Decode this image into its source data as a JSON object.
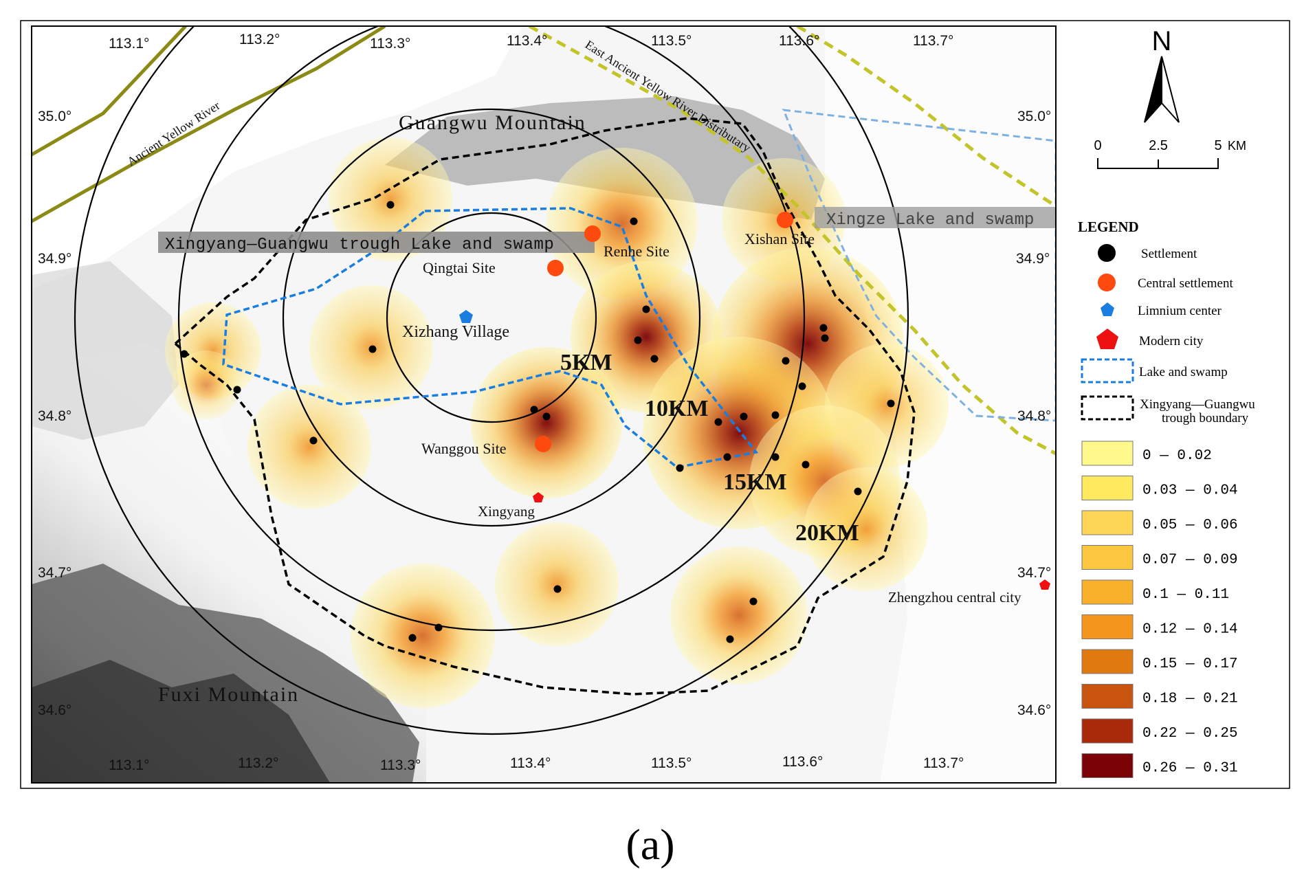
{
  "figure_label": "(a)",
  "grid": {
    "lon_top": [
      "113.1°",
      "113.2°",
      "113.3°",
      "113.4°",
      "113.5°",
      "113.6°",
      "113.7°"
    ],
    "lon_bottom": [
      "113.1°",
      "113.2°",
      "113.3°",
      "113.4°",
      "113.5°",
      "113.6°",
      "113.7°"
    ],
    "lat_left": [
      "35.0°",
      "34.9°",
      "34.8°",
      "34.7°",
      "34.6°"
    ],
    "lat_right": [
      "35.0°",
      "34.9°",
      "34.8°",
      "34.7°",
      "34.6°"
    ]
  },
  "map_labels": {
    "guangwu_mountain": "Guangwu Mountain",
    "fuxi_mountain": "Fuxi Mountain",
    "ancient_yellow_river": "Ancient Yellow River",
    "east_ancient_yellow_river": "East Ancient Yellow River Distributary",
    "xingyang_trough_lake": "Xingyang—Guangwu trough Lake and swamp",
    "xingze_lake": "Xingze Lake and swamp",
    "qingtai_site": "Qingtai  Site",
    "renhe_site": "Renhe Site",
    "xishan_site": "Xishan  Site",
    "wanggou_site": "Wanggou Site",
    "xizhang_village": "Xizhang Village",
    "xingyang": "Xingyang",
    "zhengzhou": "Zhengzhou central city"
  },
  "rings": {
    "r5": "5KM",
    "r10": "10KM",
    "r15": "15KM",
    "r20": "20KM"
  },
  "north_arrow": {
    "letter": "N"
  },
  "scale_bar": {
    "ticks": [
      "0",
      "2.5",
      "5"
    ],
    "unit": "KM"
  },
  "legend": {
    "title": "LEGEND",
    "symbols": [
      {
        "label": "Settlement",
        "icon": "black-dot-icon",
        "color": "#000000"
      },
      {
        "label": "Central settlement",
        "icon": "orange-dot-icon",
        "color": "#ff4a0f"
      },
      {
        "label": "Limnium center",
        "icon": "blue-pentagon-icon",
        "color": "#1a7de0"
      },
      {
        "label": "Modern city",
        "icon": "red-pentagon-icon",
        "color": "#ee1111"
      },
      {
        "label": "Lake and swamp",
        "icon": "blue-dashed-box-icon",
        "color": "#1a7de0"
      },
      {
        "label": "Xingyang—Guangwu",
        "label2": "trough  boundary",
        "icon": "black-dashed-box-icon",
        "color": "#000000"
      }
    ],
    "density_classes": [
      {
        "label": "0 — 0.02",
        "color": "#fff88a"
      },
      {
        "label": "0.03 — 0.04",
        "color": "#ffe95e"
      },
      {
        "label": "0.05 — 0.06",
        "color": "#fdd655"
      },
      {
        "label": "0.07 — 0.09",
        "color": "#fbc640"
      },
      {
        "label": "0.1  — 0.11",
        "color": "#f9b02a"
      },
      {
        "label": "0.12 — 0.14",
        "color": "#f4961d"
      },
      {
        "label": "0.15 — 0.17",
        "color": "#e07a10"
      },
      {
        "label": "0.18 — 0.21",
        "color": "#c95410"
      },
      {
        "label": "0.22 — 0.25",
        "color": "#a82a0a"
      },
      {
        "label": "0.26 — 0.31",
        "color": "#7a0206"
      }
    ]
  }
}
